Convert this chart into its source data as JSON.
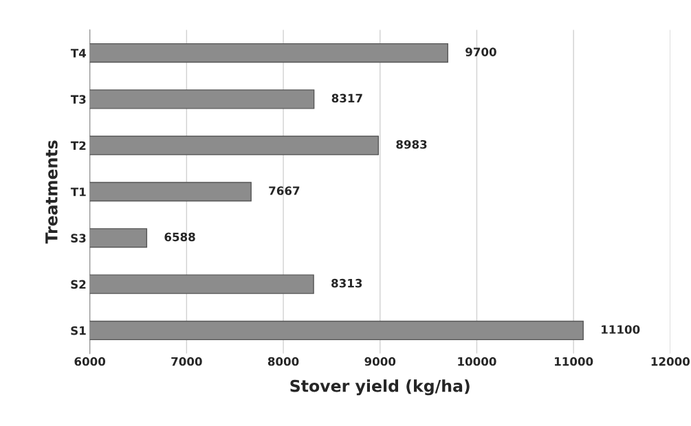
{
  "chart_data": {
    "type": "bar",
    "orientation": "horizontal",
    "xlabel": "Stover yield (kg/ha)",
    "ylabel": "Treatments",
    "categories": [
      "T4",
      "T3",
      "T2",
      "T1",
      "S3",
      "S2",
      "S1"
    ],
    "values": [
      9700,
      8317,
      8983,
      7667,
      6588,
      8313,
      11100
    ],
    "color": "#8c8c8c",
    "xlim": [
      6000,
      12000
    ],
    "xticks": [
      6000,
      7000,
      8000,
      9000,
      10000,
      11000,
      12000
    ],
    "grid": "x",
    "data_labels": true
  }
}
